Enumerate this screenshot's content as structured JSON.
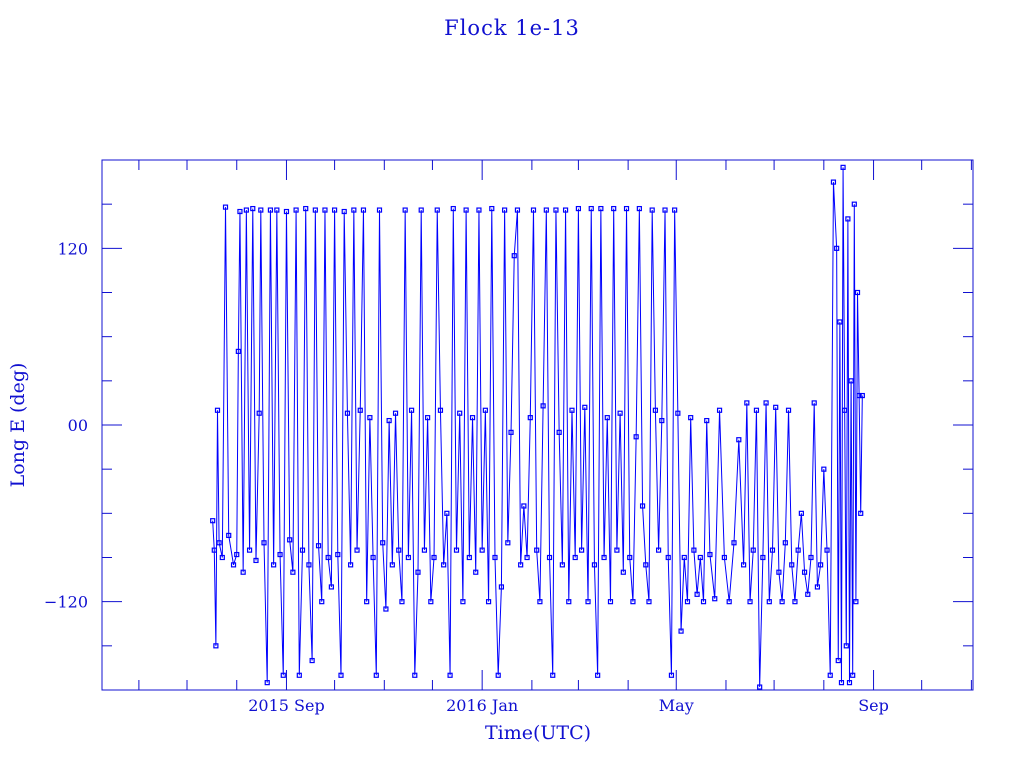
{
  "chart_data": {
    "type": "line",
    "title": "Flock 1e-13",
    "xlabel": "Time(UTC)",
    "ylabel": "Long E (deg)",
    "xlim": [
      "2015-05-09",
      "2016-11-02"
    ],
    "ylim": [
      -180,
      180
    ],
    "x_tick_labels": [
      {
        "date": "2015-09-01",
        "label": "2015 Sep"
      },
      {
        "date": "2016-01-01",
        "label": "2016 Jan"
      },
      {
        "date": "2016-05-01",
        "label": "May"
      },
      {
        "date": "2016-09-01",
        "label": "Sep"
      }
    ],
    "y_tick_labels": [
      {
        "value": 120,
        "label": "120"
      },
      {
        "value": 0,
        "label": "00"
      },
      {
        "value": -120,
        "label": "-120"
      }
    ],
    "y_minor_step": 30,
    "x_minor": "monthly",
    "grid": false,
    "marker": "square",
    "color": "#0000ff",
    "axis_color": "#1010d0",
    "series": [
      {
        "points": [
          [
            "2015-07-17",
            -65
          ],
          [
            "2015-07-18",
            -85
          ],
          [
            "2015-07-19",
            -150
          ],
          [
            "2015-07-20",
            10
          ],
          [
            "2015-07-21",
            -80
          ],
          [
            "2015-07-23",
            -90
          ],
          [
            "2015-07-25",
            148
          ],
          [
            "2015-07-27",
            -75
          ],
          [
            "2015-07-30",
            -95
          ],
          [
            "2015-08-01",
            -88
          ],
          [
            "2015-08-02",
            50
          ],
          [
            "2015-08-03",
            145
          ],
          [
            "2015-08-05",
            -100
          ],
          [
            "2015-08-07",
            146
          ],
          [
            "2015-08-09",
            -85
          ],
          [
            "2015-08-11",
            147
          ],
          [
            "2015-08-13",
            -92
          ],
          [
            "2015-08-15",
            8
          ],
          [
            "2015-08-16",
            146
          ],
          [
            "2015-08-18",
            -80
          ],
          [
            "2015-08-20",
            -175
          ],
          [
            "2015-08-22",
            146
          ],
          [
            "2015-08-24",
            -95
          ],
          [
            "2015-08-26",
            146
          ],
          [
            "2015-08-28",
            -88
          ],
          [
            "2015-08-30",
            -170
          ],
          [
            "2015-09-01",
            145
          ],
          [
            "2015-09-03",
            -78
          ],
          [
            "2015-09-05",
            -100
          ],
          [
            "2015-09-07",
            146
          ],
          [
            "2015-09-09",
            -170
          ],
          [
            "2015-09-11",
            -85
          ],
          [
            "2015-09-13",
            147
          ],
          [
            "2015-09-15",
            -95
          ],
          [
            "2015-09-17",
            -160
          ],
          [
            "2015-09-19",
            146
          ],
          [
            "2015-09-21",
            -82
          ],
          [
            "2015-09-23",
            -120
          ],
          [
            "2015-09-25",
            146
          ],
          [
            "2015-09-27",
            -90
          ],
          [
            "2015-09-29",
            -110
          ],
          [
            "2015-10-01",
            146
          ],
          [
            "2015-10-03",
            -88
          ],
          [
            "2015-10-05",
            -170
          ],
          [
            "2015-10-07",
            145
          ],
          [
            "2015-10-09",
            8
          ],
          [
            "2015-10-11",
            -95
          ],
          [
            "2015-10-13",
            146
          ],
          [
            "2015-10-15",
            -85
          ],
          [
            "2015-10-17",
            10
          ],
          [
            "2015-10-19",
            146
          ],
          [
            "2015-10-21",
            -120
          ],
          [
            "2015-10-23",
            5
          ],
          [
            "2015-10-25",
            -90
          ],
          [
            "2015-10-27",
            -170
          ],
          [
            "2015-10-29",
            146
          ],
          [
            "2015-10-31",
            -80
          ],
          [
            "2015-11-02",
            -125
          ],
          [
            "2015-11-04",
            3
          ],
          [
            "2015-11-06",
            -95
          ],
          [
            "2015-11-08",
            8
          ],
          [
            "2015-11-10",
            -85
          ],
          [
            "2015-11-12",
            -120
          ],
          [
            "2015-11-14",
            146
          ],
          [
            "2015-11-16",
            -90
          ],
          [
            "2015-11-18",
            10
          ],
          [
            "2015-11-20",
            -170
          ],
          [
            "2015-11-22",
            -100
          ],
          [
            "2015-11-24",
            146
          ],
          [
            "2015-11-26",
            -85
          ],
          [
            "2015-11-28",
            5
          ],
          [
            "2015-11-30",
            -120
          ],
          [
            "2015-12-02",
            -90
          ],
          [
            "2015-12-04",
            146
          ],
          [
            "2015-12-06",
            10
          ],
          [
            "2015-12-08",
            -95
          ],
          [
            "2015-12-10",
            -60
          ],
          [
            "2015-12-12",
            -170
          ],
          [
            "2015-12-14",
            147
          ],
          [
            "2015-12-16",
            -85
          ],
          [
            "2015-12-18",
            8
          ],
          [
            "2015-12-20",
            -120
          ],
          [
            "2015-12-22",
            146
          ],
          [
            "2015-12-24",
            -90
          ],
          [
            "2015-12-26",
            5
          ],
          [
            "2015-12-28",
            -100
          ],
          [
            "2015-12-30",
            146
          ],
          [
            "2016-01-01",
            -85
          ],
          [
            "2016-01-03",
            10
          ],
          [
            "2016-01-05",
            -120
          ],
          [
            "2016-01-07",
            147
          ],
          [
            "2016-01-09",
            -90
          ],
          [
            "2016-01-11",
            -170
          ],
          [
            "2016-01-13",
            -110
          ],
          [
            "2016-01-15",
            146
          ],
          [
            "2016-01-17",
            -80
          ],
          [
            "2016-01-19",
            -5
          ],
          [
            "2016-01-21",
            115
          ],
          [
            "2016-01-23",
            146
          ],
          [
            "2016-01-25",
            -95
          ],
          [
            "2016-01-27",
            -55
          ],
          [
            "2016-01-29",
            -90
          ],
          [
            "2016-01-31",
            5
          ],
          [
            "2016-02-02",
            146
          ],
          [
            "2016-02-04",
            -85
          ],
          [
            "2016-02-06",
            -120
          ],
          [
            "2016-02-08",
            13
          ],
          [
            "2016-02-10",
            146
          ],
          [
            "2016-02-12",
            -90
          ],
          [
            "2016-02-14",
            -170
          ],
          [
            "2016-02-16",
            146
          ],
          [
            "2016-02-18",
            -5
          ],
          [
            "2016-02-20",
            -95
          ],
          [
            "2016-02-22",
            146
          ],
          [
            "2016-02-24",
            -120
          ],
          [
            "2016-02-26",
            10
          ],
          [
            "2016-02-28",
            -90
          ],
          [
            "2016-03-01",
            147
          ],
          [
            "2016-03-03",
            -85
          ],
          [
            "2016-03-05",
            12
          ],
          [
            "2016-03-07",
            -120
          ],
          [
            "2016-03-09",
            147
          ],
          [
            "2016-03-11",
            -95
          ],
          [
            "2016-03-13",
            -170
          ],
          [
            "2016-03-15",
            147
          ],
          [
            "2016-03-17",
            -90
          ],
          [
            "2016-03-19",
            5
          ],
          [
            "2016-03-21",
            -120
          ],
          [
            "2016-03-23",
            147
          ],
          [
            "2016-03-25",
            -85
          ],
          [
            "2016-03-27",
            8
          ],
          [
            "2016-03-29",
            -100
          ],
          [
            "2016-03-31",
            147
          ],
          [
            "2016-04-02",
            -90
          ],
          [
            "2016-04-04",
            -120
          ],
          [
            "2016-04-06",
            -8
          ],
          [
            "2016-04-08",
            147
          ],
          [
            "2016-04-10",
            -55
          ],
          [
            "2016-04-12",
            -95
          ],
          [
            "2016-04-14",
            -120
          ],
          [
            "2016-04-16",
            146
          ],
          [
            "2016-04-18",
            10
          ],
          [
            "2016-04-20",
            -85
          ],
          [
            "2016-04-22",
            3
          ],
          [
            "2016-04-24",
            146
          ],
          [
            "2016-04-26",
            -90
          ],
          [
            "2016-04-28",
            -170
          ],
          [
            "2016-04-30",
            146
          ],
          [
            "2016-05-02",
            8
          ],
          [
            "2016-05-04",
            -140
          ],
          [
            "2016-05-06",
            -90
          ],
          [
            "2016-05-08",
            -120
          ],
          [
            "2016-05-10",
            5
          ],
          [
            "2016-05-12",
            -85
          ],
          [
            "2016-05-14",
            -115
          ],
          [
            "2016-05-16",
            -90
          ],
          [
            "2016-05-18",
            -120
          ],
          [
            "2016-05-20",
            3
          ],
          [
            "2016-05-22",
            -88
          ],
          [
            "2016-05-25",
            -118
          ],
          [
            "2016-05-28",
            10
          ],
          [
            "2016-05-31",
            -90
          ],
          [
            "2016-06-03",
            -120
          ],
          [
            "2016-06-06",
            -80
          ],
          [
            "2016-06-09",
            -10
          ],
          [
            "2016-06-12",
            -95
          ],
          [
            "2016-06-14",
            15
          ],
          [
            "2016-06-16",
            -120
          ],
          [
            "2016-06-18",
            -85
          ],
          [
            "2016-06-20",
            10
          ],
          [
            "2016-06-22",
            -178
          ],
          [
            "2016-06-24",
            -90
          ],
          [
            "2016-06-26",
            15
          ],
          [
            "2016-06-28",
            -120
          ],
          [
            "2016-06-30",
            -85
          ],
          [
            "2016-07-02",
            12
          ],
          [
            "2016-07-04",
            -100
          ],
          [
            "2016-07-06",
            -120
          ],
          [
            "2016-07-08",
            -80
          ],
          [
            "2016-07-10",
            10
          ],
          [
            "2016-07-12",
            -95
          ],
          [
            "2016-07-14",
            -120
          ],
          [
            "2016-07-16",
            -85
          ],
          [
            "2016-07-18",
            -60
          ],
          [
            "2016-07-20",
            -100
          ],
          [
            "2016-07-22",
            -115
          ],
          [
            "2016-07-24",
            -90
          ],
          [
            "2016-07-26",
            15
          ],
          [
            "2016-07-28",
            -110
          ],
          [
            "2016-07-30",
            -95
          ],
          [
            "2016-08-01",
            -30
          ],
          [
            "2016-08-03",
            -85
          ],
          [
            "2016-08-05",
            -170
          ],
          [
            "2016-08-07",
            165
          ],
          [
            "2016-08-09",
            120
          ],
          [
            "2016-08-10",
            -160
          ],
          [
            "2016-08-11",
            70
          ],
          [
            "2016-08-12",
            -175
          ],
          [
            "2016-08-13",
            175
          ],
          [
            "2016-08-14",
            10
          ],
          [
            "2016-08-15",
            -150
          ],
          [
            "2016-08-16",
            140
          ],
          [
            "2016-08-17",
            -175
          ],
          [
            "2016-08-18",
            30
          ],
          [
            "2016-08-19",
            -170
          ],
          [
            "2016-08-20",
            150
          ],
          [
            "2016-08-21",
            -120
          ],
          [
            "2016-08-22",
            90
          ],
          [
            "2016-08-23",
            20
          ],
          [
            "2016-08-24",
            -60
          ],
          [
            "2016-08-25",
            20
          ]
        ]
      }
    ]
  }
}
